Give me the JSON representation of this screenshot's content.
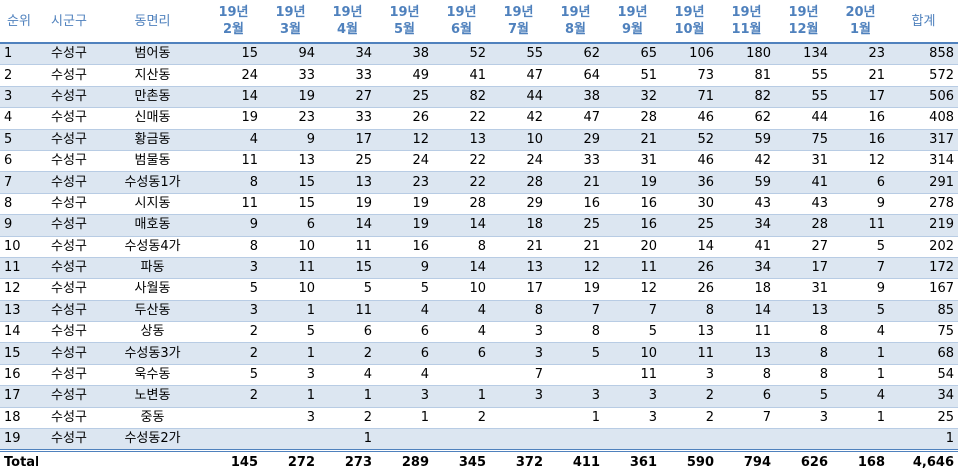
{
  "table": {
    "header": [
      [
        "순위"
      ],
      [
        "시군구"
      ],
      [
        "동면리"
      ],
      [
        "19년",
        "2월"
      ],
      [
        "19년",
        "3월"
      ],
      [
        "19년",
        "4월"
      ],
      [
        "19년",
        "5월"
      ],
      [
        "19년",
        "6월"
      ],
      [
        "19년",
        "7월"
      ],
      [
        "19년",
        "8월"
      ],
      [
        "19년",
        "9월"
      ],
      [
        "19년",
        "10월"
      ],
      [
        "19년",
        "11월"
      ],
      [
        "19년",
        "12월"
      ],
      [
        "20년",
        "1월"
      ],
      [
        "합계"
      ]
    ],
    "rows": [
      [
        "1",
        "수성구",
        "범어동",
        "15",
        "94",
        "34",
        "38",
        "52",
        "55",
        "62",
        "65",
        "106",
        "180",
        "134",
        "23",
        "858"
      ],
      [
        "2",
        "수성구",
        "지산동",
        "24",
        "33",
        "33",
        "49",
        "41",
        "47",
        "64",
        "51",
        "73",
        "81",
        "55",
        "21",
        "572"
      ],
      [
        "3",
        "수성구",
        "만촌동",
        "14",
        "19",
        "27",
        "25",
        "82",
        "44",
        "38",
        "32",
        "71",
        "82",
        "55",
        "17",
        "506"
      ],
      [
        "4",
        "수성구",
        "신매동",
        "19",
        "23",
        "33",
        "26",
        "22",
        "42",
        "47",
        "28",
        "46",
        "62",
        "44",
        "16",
        "408"
      ],
      [
        "5",
        "수성구",
        "황금동",
        "4",
        "9",
        "17",
        "12",
        "13",
        "10",
        "29",
        "21",
        "52",
        "59",
        "75",
        "16",
        "317"
      ],
      [
        "6",
        "수성구",
        "범물동",
        "11",
        "13",
        "25",
        "24",
        "22",
        "24",
        "33",
        "31",
        "46",
        "42",
        "31",
        "12",
        "314"
      ],
      [
        "7",
        "수성구",
        "수성동1가",
        "8",
        "15",
        "13",
        "23",
        "22",
        "28",
        "21",
        "19",
        "36",
        "59",
        "41",
        "6",
        "291"
      ],
      [
        "8",
        "수성구",
        "시지동",
        "11",
        "15",
        "19",
        "19",
        "28",
        "29",
        "16",
        "16",
        "30",
        "43",
        "43",
        "9",
        "278"
      ],
      [
        "9",
        "수성구",
        "매호동",
        "9",
        "6",
        "14",
        "19",
        "14",
        "18",
        "25",
        "16",
        "25",
        "34",
        "28",
        "11",
        "219"
      ],
      [
        "10",
        "수성구",
        "수성동4가",
        "8",
        "10",
        "11",
        "16",
        "8",
        "21",
        "21",
        "20",
        "14",
        "41",
        "27",
        "5",
        "202"
      ],
      [
        "11",
        "수성구",
        "파동",
        "3",
        "11",
        "15",
        "9",
        "14",
        "13",
        "12",
        "11",
        "26",
        "34",
        "17",
        "7",
        "172"
      ],
      [
        "12",
        "수성구",
        "사월동",
        "5",
        "10",
        "5",
        "5",
        "10",
        "17",
        "19",
        "12",
        "26",
        "18",
        "31",
        "9",
        "167"
      ],
      [
        "13",
        "수성구",
        "두산동",
        "3",
        "1",
        "11",
        "4",
        "4",
        "8",
        "7",
        "7",
        "8",
        "14",
        "13",
        "5",
        "85"
      ],
      [
        "14",
        "수성구",
        "상동",
        "2",
        "5",
        "6",
        "6",
        "4",
        "3",
        "8",
        "5",
        "13",
        "11",
        "8",
        "4",
        "75"
      ],
      [
        "15",
        "수성구",
        "수성동3가",
        "2",
        "1",
        "2",
        "6",
        "6",
        "3",
        "5",
        "10",
        "11",
        "13",
        "8",
        "1",
        "68"
      ],
      [
        "16",
        "수성구",
        "욱수동",
        "5",
        "3",
        "4",
        "4",
        null,
        "7",
        null,
        "11",
        "3",
        "8",
        "8",
        "1",
        "54"
      ],
      [
        "17",
        "수성구",
        "노변동",
        "2",
        "1",
        "1",
        "3",
        "1",
        "3",
        "3",
        "3",
        "2",
        "6",
        "5",
        "4",
        "34"
      ],
      [
        "18",
        "수성구",
        "중동",
        null,
        "3",
        "2",
        "1",
        "2",
        null,
        "1",
        "3",
        "2",
        "7",
        "3",
        "1",
        "25"
      ],
      [
        "19",
        "수성구",
        "수성동2가",
        null,
        null,
        "1",
        null,
        null,
        null,
        null,
        null,
        null,
        null,
        null,
        null,
        "1"
      ]
    ],
    "total": [
      "Total",
      null,
      null,
      "145",
      "272",
      "273",
      "289",
      "345",
      "372",
      "411",
      "361",
      "590",
      "794",
      "626",
      "168",
      "4,646"
    ]
  }
}
